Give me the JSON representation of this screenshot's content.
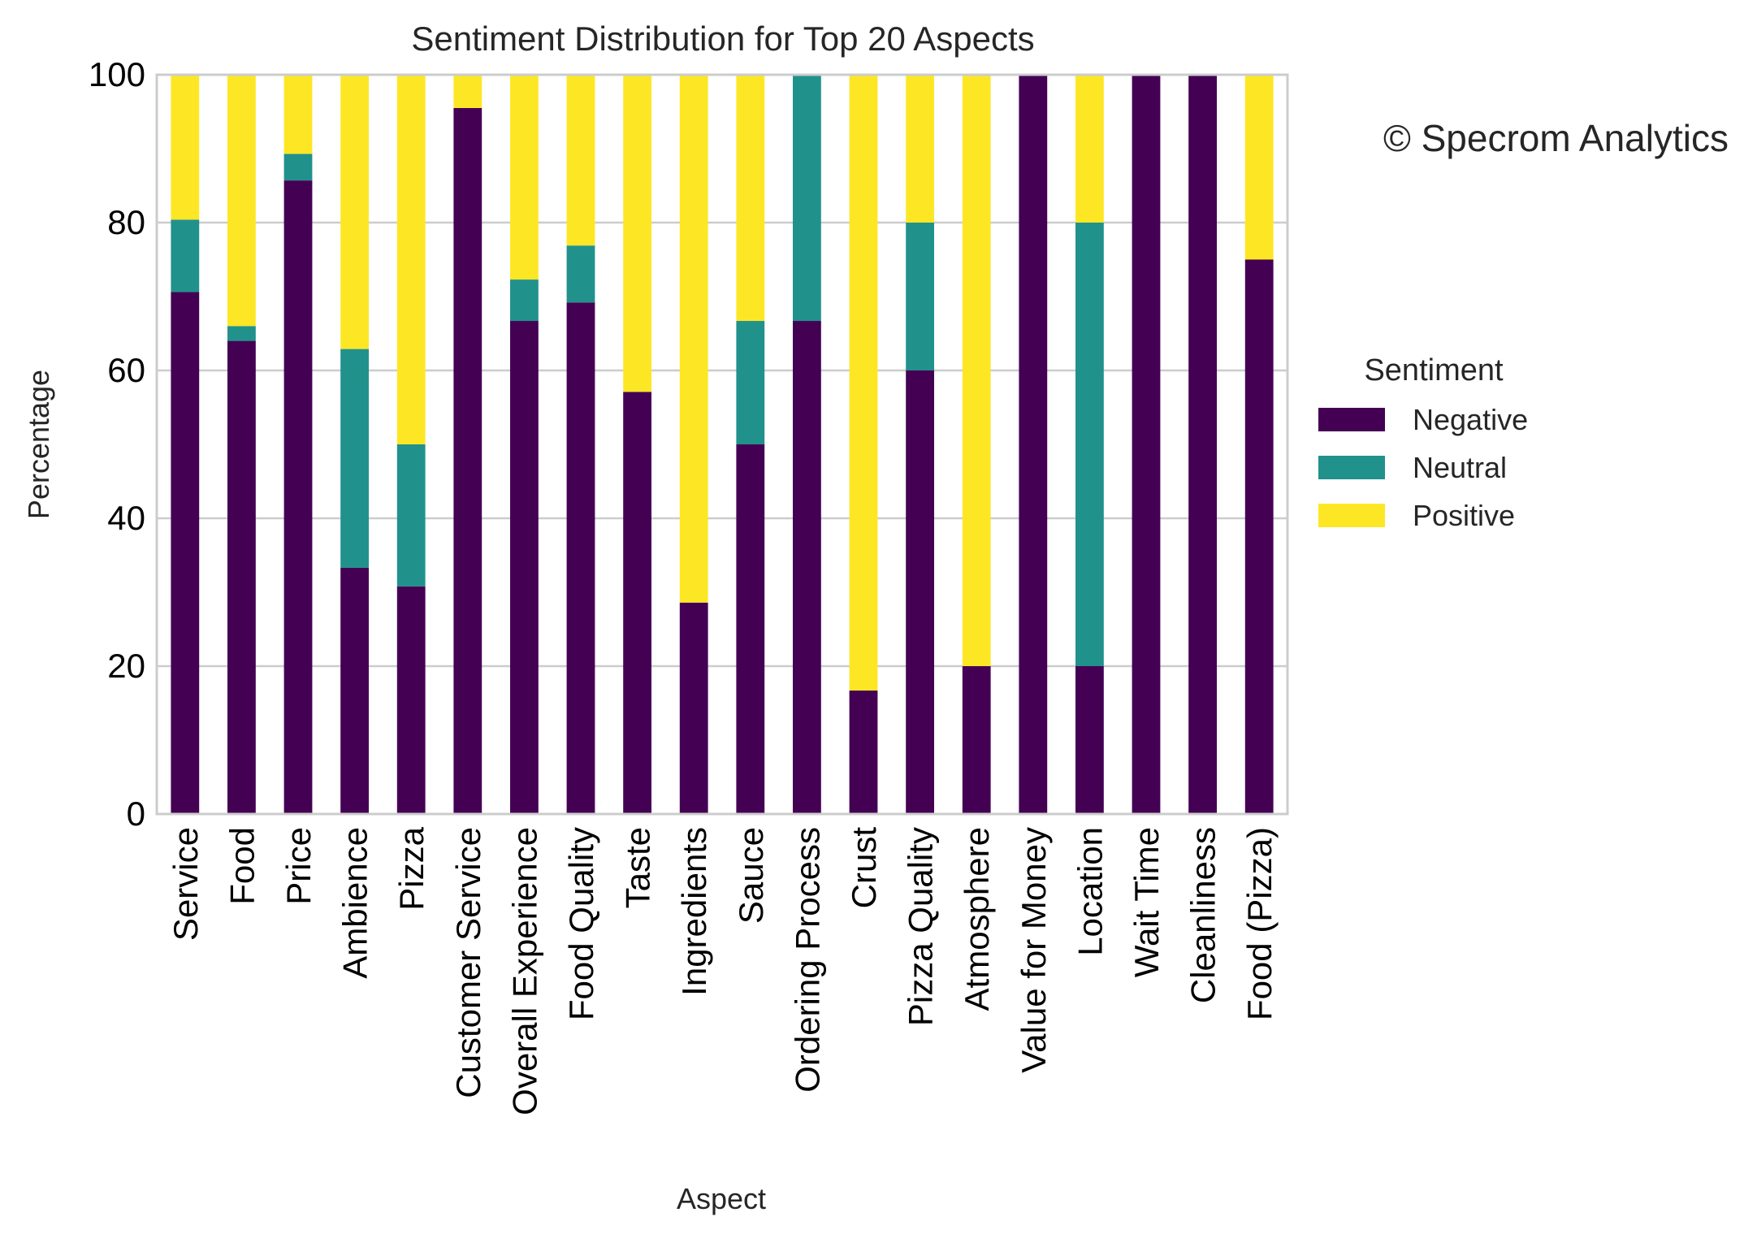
{
  "chart_data": {
    "type": "bar",
    "stacked": true,
    "title": "Sentiment Distribution for Top 20 Aspects",
    "xlabel": "Aspect",
    "ylabel": "Percentage",
    "ylim": [
      0,
      100
    ],
    "yticks": [
      0,
      20,
      40,
      60,
      80,
      100
    ],
    "grid": "horizontal",
    "legend_title": "Sentiment",
    "legend_position": "right",
    "watermark": "© Specrom Analytics",
    "categories": [
      "Service",
      "Food",
      "Price",
      "Ambience",
      "Pizza",
      "Customer Service",
      "Overall Experience",
      "Food Quality",
      "Taste",
      "Ingredients",
      "Sauce",
      "Ordering Process",
      "Crust",
      "Pizza Quality",
      "Atmosphere",
      "Value for Money",
      "Location",
      "Wait Time",
      "Cleanliness",
      "Food (Pizza)"
    ],
    "series": [
      {
        "name": "Negative",
        "color": "#440154",
        "values": [
          70.6,
          64.0,
          85.7,
          33.3,
          30.8,
          95.5,
          66.7,
          69.2,
          57.1,
          28.6,
          50.0,
          66.7,
          16.7,
          60.0,
          20.0,
          100.0,
          20.0,
          100.0,
          100.0,
          75.0
        ]
      },
      {
        "name": "Neutral",
        "color": "#21918c",
        "values": [
          9.8,
          2.0,
          3.6,
          29.6,
          19.2,
          0.0,
          5.6,
          7.7,
          0.0,
          0.0,
          16.7,
          33.3,
          0.0,
          20.0,
          0.0,
          0.0,
          60.0,
          0.0,
          0.0,
          0.0
        ]
      },
      {
        "name": "Positive",
        "color": "#fde725",
        "values": [
          19.6,
          34.0,
          10.7,
          37.1,
          50.0,
          4.5,
          27.7,
          23.1,
          42.9,
          71.4,
          33.3,
          0.0,
          83.3,
          20.0,
          80.0,
          0.0,
          20.0,
          0.0,
          0.0,
          25.0
        ]
      }
    ]
  }
}
